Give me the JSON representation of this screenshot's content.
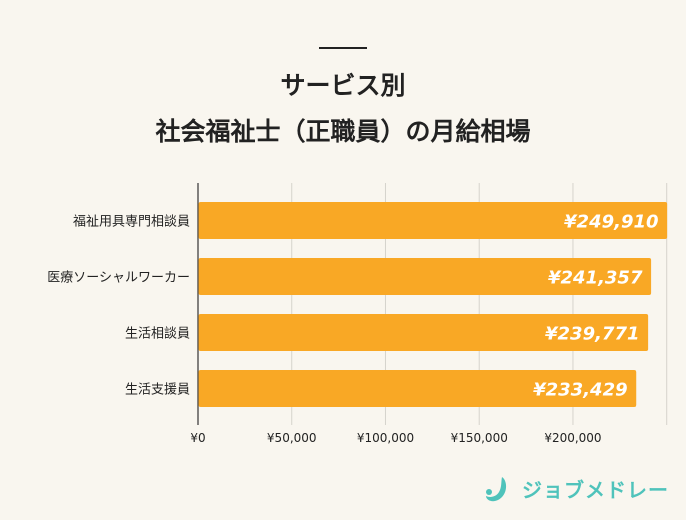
{
  "chart_data": {
    "type": "bar",
    "orientation": "horizontal",
    "title": [
      "サービス別",
      "社会福祉士（正職員）の月給相場"
    ],
    "categories": [
      "福祉用具専門相談員",
      "医療ソーシャルワーカー",
      "生活相談員",
      "生活支援員"
    ],
    "values": [
      249910,
      241357,
      239771,
      233429
    ],
    "data_labels": [
      "¥249,910",
      "¥241,357",
      "¥239,771",
      "¥233,429"
    ],
    "xlim": [
      0,
      250000
    ],
    "x_ticks": [
      0,
      50000,
      100000,
      150000,
      200000,
      250000
    ],
    "x_tick_labels": [
      "¥0",
      "¥50,000",
      "¥100,000",
      "¥150,000",
      "¥200,000",
      ""
    ],
    "grid": true,
    "colors": {
      "bar": "#f9a825",
      "label": "#ffffff",
      "grid": "#d6d3cc",
      "axis": "#333333"
    }
  },
  "brand": {
    "name": "ジョブメドレー",
    "color": "#4fc3bb"
  }
}
